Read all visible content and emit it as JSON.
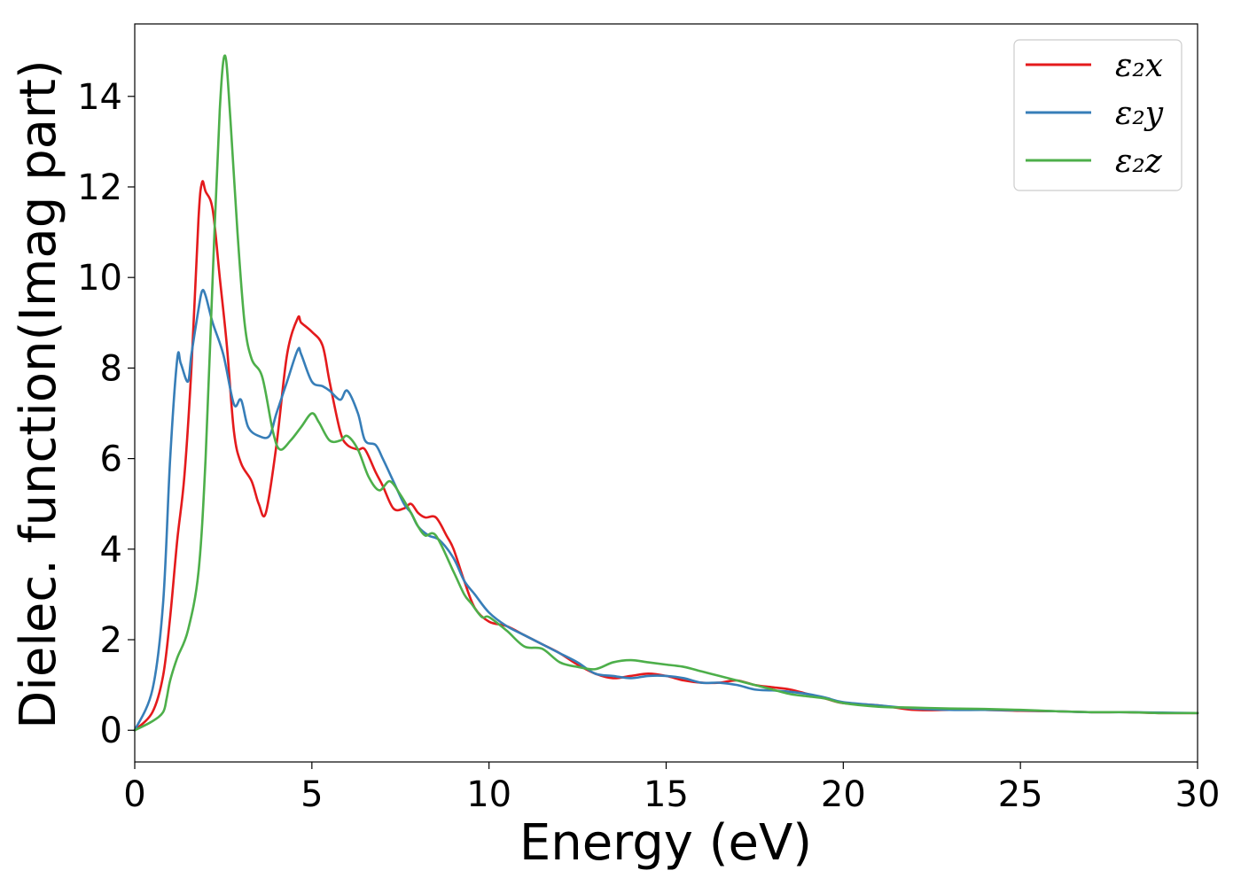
{
  "chart_data": {
    "type": "line",
    "title": "",
    "xlabel": "Energy (eV)",
    "ylabel": "Dielec. function(Imag part)",
    "xlim": [
      0,
      30
    ],
    "ylim": [
      -0.7,
      15.6
    ],
    "xticks": [
      0,
      5,
      10,
      15,
      20,
      25,
      30
    ],
    "yticks": [
      0,
      2,
      4,
      6,
      8,
      10,
      12,
      14
    ],
    "grid": false,
    "legend_position": "top-right",
    "series": [
      {
        "name": "ε₂x",
        "color": "#e41a1c",
        "x": [
          0,
          0.5,
          0.8,
          1.0,
          1.2,
          1.4,
          1.6,
          1.8,
          1.9,
          2.0,
          2.2,
          2.4,
          2.6,
          2.8,
          3.0,
          3.3,
          3.5,
          3.7,
          4.0,
          4.3,
          4.6,
          4.7,
          5.0,
          5.3,
          5.5,
          5.8,
          6.0,
          6.3,
          6.5,
          6.8,
          7.0,
          7.3,
          7.6,
          7.8,
          8.0,
          8.2,
          8.5,
          8.8,
          9.0,
          9.3,
          9.6,
          10,
          10.5,
          11,
          11.5,
          12,
          12.5,
          13,
          13.5,
          14,
          14.5,
          15,
          15.5,
          16,
          16.5,
          17,
          17.5,
          18,
          18.5,
          19,
          19.5,
          20,
          21,
          22,
          23,
          24,
          25,
          26,
          27,
          28,
          29,
          30
        ],
        "values": [
          0.0,
          0.4,
          1.2,
          2.5,
          4.2,
          5.6,
          8.0,
          11.3,
          12.1,
          11.9,
          11.5,
          10.0,
          8.5,
          6.6,
          5.9,
          5.5,
          5.0,
          4.8,
          6.3,
          8.3,
          9.1,
          9.0,
          8.8,
          8.5,
          7.7,
          6.6,
          6.3,
          6.2,
          6.2,
          5.7,
          5.4,
          4.9,
          4.9,
          5.0,
          4.8,
          4.7,
          4.7,
          4.3,
          4.0,
          3.3,
          2.7,
          2.4,
          2.3,
          2.1,
          1.9,
          1.7,
          1.45,
          1.25,
          1.15,
          1.2,
          1.25,
          1.2,
          1.1,
          1.05,
          1.05,
          1.1,
          1.0,
          0.95,
          0.9,
          0.8,
          0.7,
          0.6,
          0.55,
          0.45,
          0.45,
          0.45,
          0.43,
          0.42,
          0.4,
          0.4,
          0.38,
          0.38
        ]
      },
      {
        "name": "ε₂y",
        "color": "#377eb8",
        "x": [
          0,
          0.5,
          0.8,
          1.0,
          1.2,
          1.3,
          1.5,
          1.6,
          1.8,
          1.9,
          2.0,
          2.2,
          2.5,
          2.8,
          3.0,
          3.2,
          3.5,
          3.8,
          4.0,
          4.3,
          4.6,
          4.7,
          5.0,
          5.3,
          5.5,
          5.8,
          6.0,
          6.3,
          6.5,
          6.8,
          7.0,
          7.3,
          7.6,
          7.8,
          8.0,
          8.3,
          8.6,
          9.0,
          9.3,
          9.6,
          10,
          10.5,
          11,
          11.5,
          12,
          12.5,
          13,
          13.5,
          14,
          14.5,
          15,
          15.5,
          16,
          16.5,
          17,
          17.5,
          18,
          18.5,
          19,
          19.5,
          20,
          21,
          22,
          23,
          24,
          25,
          26,
          27,
          28,
          29,
          30
        ],
        "values": [
          0.0,
          0.9,
          2.8,
          6.0,
          8.2,
          8.1,
          7.7,
          8.3,
          9.3,
          9.7,
          9.6,
          9.0,
          8.3,
          7.2,
          7.3,
          6.7,
          6.5,
          6.5,
          7.0,
          7.7,
          8.4,
          8.3,
          7.7,
          7.6,
          7.5,
          7.3,
          7.5,
          7.0,
          6.4,
          6.3,
          6.0,
          5.5,
          5.0,
          4.8,
          4.5,
          4.3,
          4.2,
          3.8,
          3.3,
          3.0,
          2.6,
          2.3,
          2.1,
          1.9,
          1.7,
          1.5,
          1.25,
          1.2,
          1.15,
          1.2,
          1.2,
          1.15,
          1.05,
          1.05,
          1.0,
          0.9,
          0.88,
          0.85,
          0.8,
          0.72,
          0.62,
          0.55,
          0.48,
          0.45,
          0.45,
          0.44,
          0.42,
          0.4,
          0.4,
          0.39,
          0.38
        ]
      },
      {
        "name": "ε₂z",
        "color": "#4daf4a",
        "x": [
          0,
          0.5,
          0.8,
          0.9,
          1.0,
          1.2,
          1.5,
          1.8,
          2.0,
          2.2,
          2.4,
          2.55,
          2.7,
          2.9,
          3.1,
          3.3,
          3.6,
          3.9,
          4.1,
          4.4,
          4.7,
          5.0,
          5.2,
          5.5,
          5.8,
          6.0,
          6.3,
          6.6,
          6.9,
          7.2,
          7.5,
          7.8,
          8.0,
          8.2,
          8.5,
          9.0,
          9.3,
          9.5,
          9.8,
          10,
          10.5,
          11,
          11.5,
          12,
          12.5,
          13,
          13.5,
          14,
          14.5,
          15,
          15.5,
          16,
          16.5,
          17,
          17.5,
          18,
          18.5,
          19,
          19.5,
          20,
          21,
          22,
          23,
          24,
          25,
          26,
          27,
          28,
          29,
          30
        ],
        "values": [
          0.0,
          0.2,
          0.4,
          0.7,
          1.1,
          1.6,
          2.2,
          3.5,
          6.0,
          10.0,
          13.7,
          14.9,
          13.5,
          11.0,
          9.0,
          8.2,
          7.8,
          6.6,
          6.2,
          6.4,
          6.7,
          7.0,
          6.8,
          6.4,
          6.4,
          6.5,
          6.2,
          5.6,
          5.3,
          5.5,
          5.2,
          4.8,
          4.5,
          4.3,
          4.3,
          3.5,
          3.0,
          2.8,
          2.5,
          2.5,
          2.2,
          1.85,
          1.8,
          1.5,
          1.4,
          1.35,
          1.5,
          1.55,
          1.5,
          1.45,
          1.4,
          1.3,
          1.2,
          1.1,
          1.0,
          0.9,
          0.8,
          0.75,
          0.7,
          0.6,
          0.52,
          0.5,
          0.48,
          0.47,
          0.45,
          0.42,
          0.4,
          0.4,
          0.38,
          0.38
        ]
      }
    ]
  }
}
